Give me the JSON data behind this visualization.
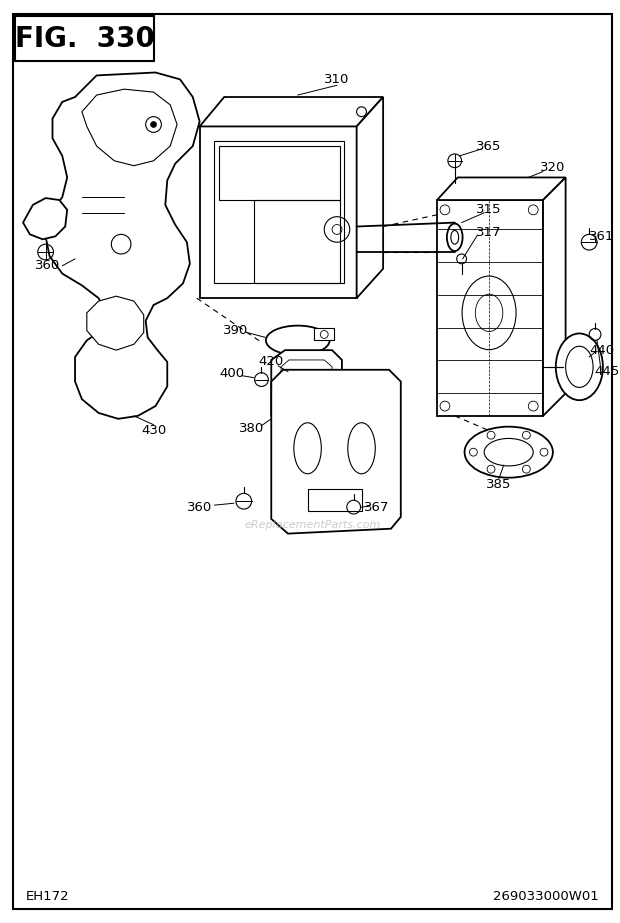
{
  "title": "FIG.  330",
  "bottom_left": "EH172",
  "bottom_right": "269033000W01",
  "watermark": "eReplacementParts.com",
  "bg_color": "#ffffff",
  "line_color": "#000000",
  "title_fontsize": 20,
  "label_fontsize": 9.5,
  "footer_fontsize": 9.5,
  "fig_w": 620,
  "fig_h": 923
}
